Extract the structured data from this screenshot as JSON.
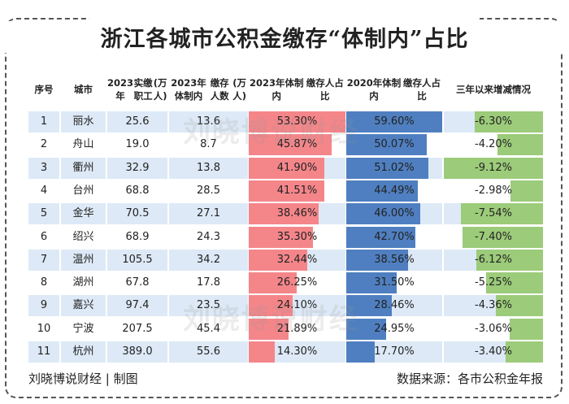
{
  "chart_data": {
    "type": "table",
    "title": "浙江各城市公积金缴存“体制内”占比",
    "columns": [
      "序号",
      "城市",
      "2023年实缴职工(万人)",
      "2023年体制内缴存人数(万人)",
      "2023年体制内缴存人占比",
      "2020年体制内缴存人占比",
      "三年以来增减情况"
    ],
    "header_lines": [
      [
        "序号"
      ],
      [
        "城市"
      ],
      [
        "2023年",
        "实缴职工",
        "(万人)"
      ],
      [
        "2023年体制内",
        "缴存人数",
        "(万人)"
      ],
      [
        "2023年体制内",
        "缴存人占比"
      ],
      [
        "2020年体制内",
        "缴存人占比"
      ],
      [
        "三年以来",
        "增减情况"
      ]
    ],
    "rows": [
      {
        "no": "1",
        "city": "丽水",
        "workers_2023": 25.6,
        "gov_2023": 13.6,
        "share_2023": 53.3,
        "share_2020": 59.6,
        "change": -6.3
      },
      {
        "no": "2",
        "city": "舟山",
        "workers_2023": 19.0,
        "gov_2023": 8.7,
        "share_2023": 45.87,
        "share_2020": 50.07,
        "change": -4.2
      },
      {
        "no": "3",
        "city": "衢州",
        "workers_2023": 32.9,
        "gov_2023": 13.8,
        "share_2023": 41.9,
        "share_2020": 51.02,
        "change": -9.12
      },
      {
        "no": "4",
        "city": "台州",
        "workers_2023": 68.8,
        "gov_2023": 28.5,
        "share_2023": 41.51,
        "share_2020": 44.49,
        "change": -2.98
      },
      {
        "no": "5",
        "city": "金华",
        "workers_2023": 70.5,
        "gov_2023": 27.1,
        "share_2023": 38.46,
        "share_2020": 46.0,
        "change": -7.54
      },
      {
        "no": "6",
        "city": "绍兴",
        "workers_2023": 68.9,
        "gov_2023": 24.3,
        "share_2023": 35.3,
        "share_2020": 42.7,
        "change": -7.4
      },
      {
        "no": "7",
        "city": "温州",
        "workers_2023": 105.5,
        "gov_2023": 34.2,
        "share_2023": 32.44,
        "share_2020": 38.56,
        "change": -6.12
      },
      {
        "no": "8",
        "city": "湖州",
        "workers_2023": 67.8,
        "gov_2023": 17.8,
        "share_2023": 26.25,
        "share_2020": 31.5,
        "change": -5.25
      },
      {
        "no": "9",
        "city": "嘉兴",
        "workers_2023": 97.4,
        "gov_2023": 23.5,
        "share_2023": 24.1,
        "share_2020": 28.46,
        "change": -4.36
      },
      {
        "no": "10",
        "city": "宁波",
        "workers_2023": 207.5,
        "gov_2023": 45.4,
        "share_2023": 21.89,
        "share_2020": 24.95,
        "change": -3.06
      },
      {
        "no": "11",
        "city": "杭州",
        "workers_2023": 389.0,
        "gov_2023": 55.6,
        "share_2023": 14.3,
        "share_2020": 17.7,
        "change": -3.4
      }
    ],
    "colors": {
      "share_2023": "#f4868a",
      "share_2020": "#4f7fc0",
      "change": "#9ccb7a",
      "row_band": "#dde9f6"
    }
  },
  "watermark": "刘晓博说财经",
  "footer": {
    "left": "刘晓博说财经 | 制图",
    "right": "数据来源：各市公积金年报"
  }
}
